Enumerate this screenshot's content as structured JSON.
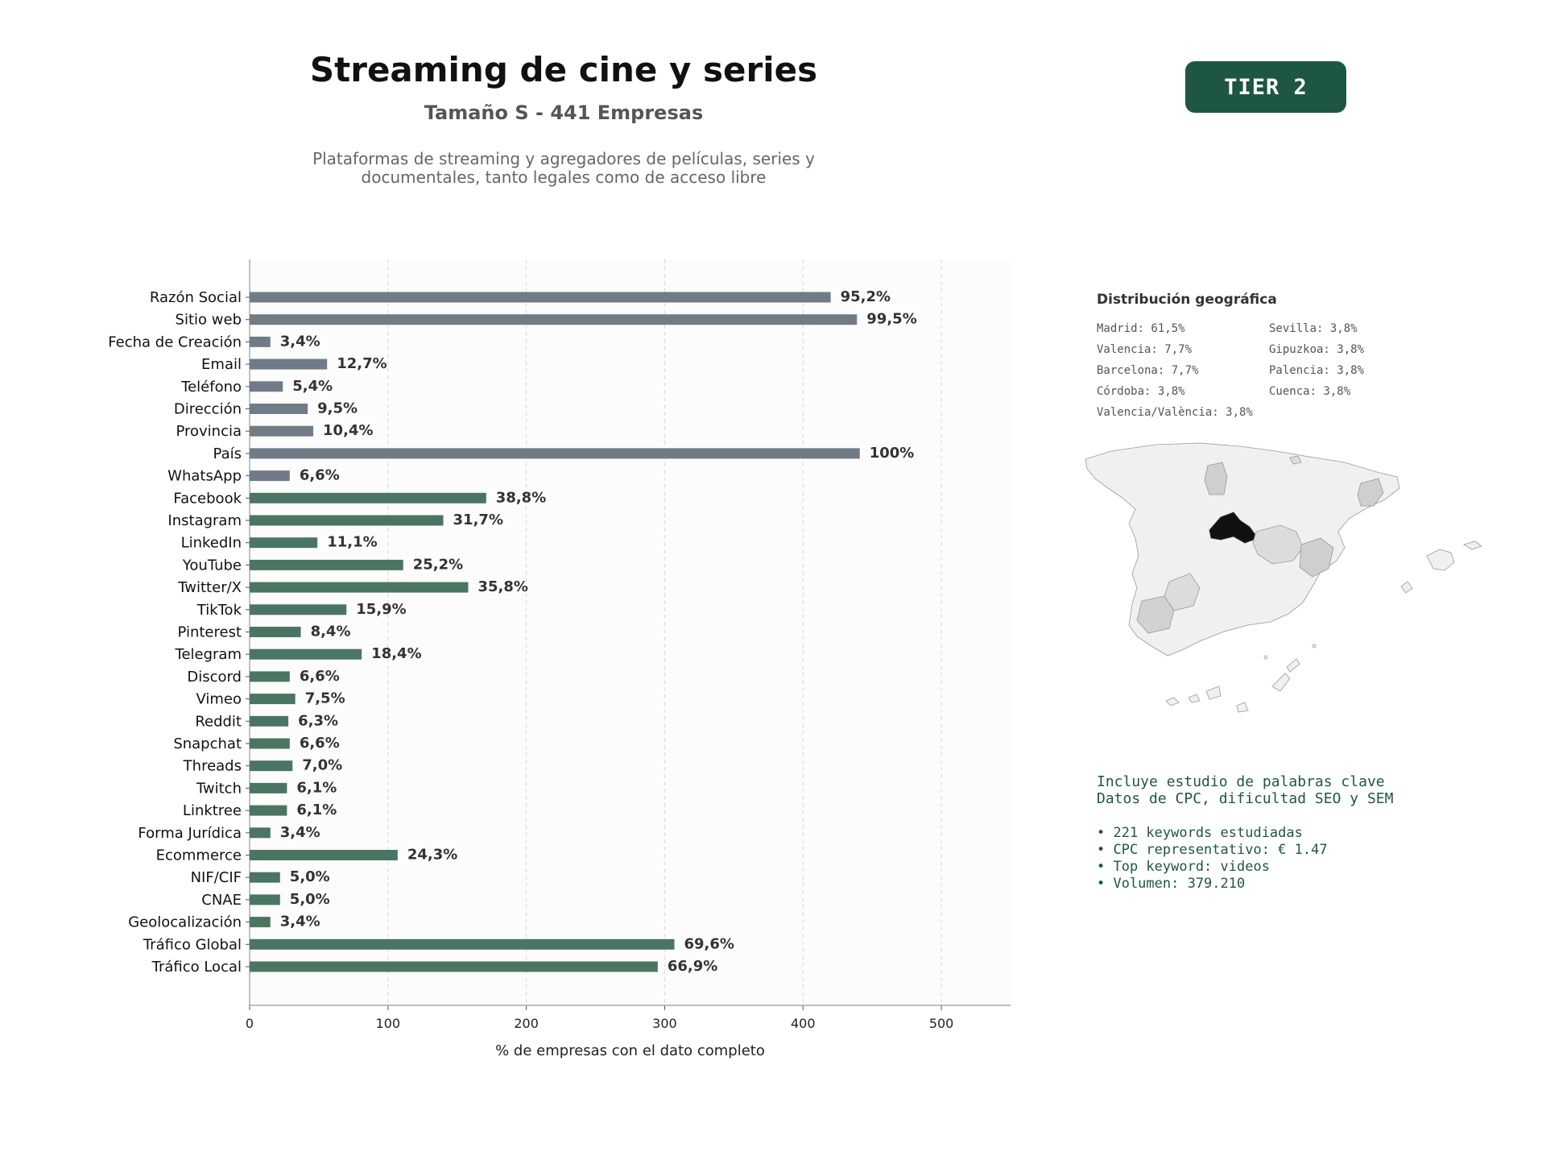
{
  "header": {
    "title": "Streaming de cine y series",
    "subtitle": "Tamaño S - 441 Empresas",
    "description_line1": "Plataformas de streaming y agregadores de películas, series y",
    "description_line2": "documentales, tanto legales como de acceso libre",
    "tier_badge": "TIER 2"
  },
  "colors": {
    "basic_bar": "#717b87",
    "digital_bar": "#4b7563",
    "badge": "#1e5741",
    "map_madrid": "#111111",
    "map_mid": "#cfcfcf",
    "map_low": "#f0f0f0"
  },
  "chart_data": {
    "type": "bar",
    "orientation": "horizontal",
    "xlabel": "% de empresas con el dato completo",
    "ylabel": "",
    "xlim": [
      0,
      550
    ],
    "xticks": [
      0,
      100,
      200,
      300,
      400,
      500
    ],
    "grid": "vertical dashed",
    "categories": [
      "Razón Social",
      "Sitio web",
      "Fecha de Creación",
      "Email",
      "Teléfono",
      "Dirección",
      "Provincia",
      "País",
      "WhatsApp",
      "Facebook",
      "Instagram",
      "LinkedIn",
      "YouTube",
      "Twitter/X",
      "TikTok",
      "Pinterest",
      "Telegram",
      "Discord",
      "Vimeo",
      "Reddit",
      "Snapchat",
      "Threads",
      "Twitch",
      "Linktree",
      "Forma Jurídica",
      "Ecommerce",
      "NIF/CIF",
      "CNAE",
      "Geolocalización",
      "Tráfico Global",
      "Tráfico Local"
    ],
    "values": [
      420,
      439,
      15,
      56,
      24,
      42,
      46,
      441,
      29,
      171,
      140,
      49,
      111,
      158,
      70,
      37,
      81,
      29,
      33,
      28,
      29,
      31,
      27,
      27,
      15,
      107,
      22,
      22,
      15,
      307,
      295
    ],
    "labels": [
      "95,2%",
      "99,5%",
      "3,4%",
      "12,7%",
      "5,4%",
      "9,5%",
      "10,4%",
      "100%",
      "6,6%",
      "38,8%",
      "31,7%",
      "11,1%",
      "25,2%",
      "35,8%",
      "15,9%",
      "8,4%",
      "18,4%",
      "6,6%",
      "7,5%",
      "6,3%",
      "6,6%",
      "7,0%",
      "6,1%",
      "6,1%",
      "3,4%",
      "24,3%",
      "5,0%",
      "5,0%",
      "3,4%",
      "69,6%",
      "66,9%"
    ],
    "groups": [
      "basic",
      "basic",
      "basic",
      "basic",
      "basic",
      "basic",
      "basic",
      "basic",
      "basic",
      "digital",
      "digital",
      "digital",
      "digital",
      "digital",
      "digital",
      "digital",
      "digital",
      "digital",
      "digital",
      "digital",
      "digital",
      "digital",
      "digital",
      "digital",
      "digital",
      "digital",
      "digital",
      "digital",
      "digital",
      "digital",
      "digital"
    ]
  },
  "geo": {
    "title": "Distribución geográfica",
    "left_column": [
      "Madrid: 61,5%",
      "Valencia: 7,7%",
      "Barcelona: 7,7%",
      "Córdoba: 3,8%",
      "Valencia/València: 3,8%"
    ],
    "right_column": [
      "Sevilla: 3,8%",
      "Gipuzkoa: 3,8%",
      "Palencia: 3,8%",
      "Cuenca: 3,8%"
    ],
    "map_icon": "spain-provinces-map"
  },
  "keywords": {
    "intro1": "Incluye estudio de palabras clave",
    "intro2": "Datos de CPC, dificultad SEO y SEM",
    "bullets": [
      "• 221 keywords estudiadas",
      "• CPC representativo: € 1.47",
      "• Top keyword: videos",
      "• Volumen: 379.210"
    ]
  }
}
